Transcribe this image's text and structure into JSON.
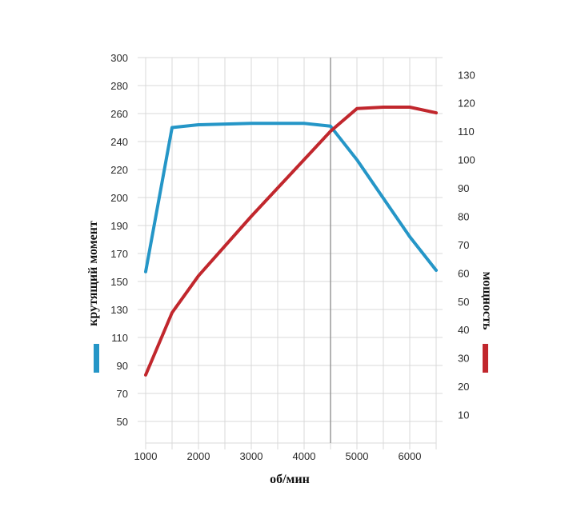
{
  "chart_data": {
    "type": "line",
    "xlabel": "об/мин",
    "ylabel_left": "крутящий момент",
    "ylabel_right": "мощность",
    "x_ticks": [
      1000,
      2000,
      3000,
      4000,
      5000,
      6000
    ],
    "xlim": [
      1000,
      6500
    ],
    "left_axis": {
      "ticks": [
        50,
        70,
        90,
        110,
        130,
        150,
        170,
        190,
        200,
        220,
        240,
        260,
        280,
        300
      ]
    },
    "right_axis": {
      "ticks": [
        10,
        20,
        30,
        40,
        50,
        60,
        70,
        80,
        90,
        100,
        110,
        120,
        130
      ],
      "ylim": [
        0,
        136
      ]
    },
    "vertical_marker_x": 4500,
    "grid": true,
    "series": [
      {
        "axis": "left",
        "color": "#2596c7",
        "points": [
          [
            1000,
            157
          ],
          [
            1500,
            250
          ],
          [
            2000,
            252
          ],
          [
            3000,
            253
          ],
          [
            4000,
            253
          ],
          [
            4500,
            251
          ],
          [
            5000,
            227
          ],
          [
            6000,
            182
          ],
          [
            6500,
            158
          ]
        ]
      },
      {
        "axis": "right",
        "color": "#c1272d",
        "points": [
          [
            1000,
            24
          ],
          [
            1500,
            46
          ],
          [
            2000,
            59
          ],
          [
            3000,
            80
          ],
          [
            4000,
            100
          ],
          [
            4500,
            110
          ],
          [
            5000,
            118
          ],
          [
            5500,
            118.5
          ],
          [
            6000,
            118.5
          ],
          [
            6500,
            116.5
          ]
        ]
      }
    ]
  }
}
